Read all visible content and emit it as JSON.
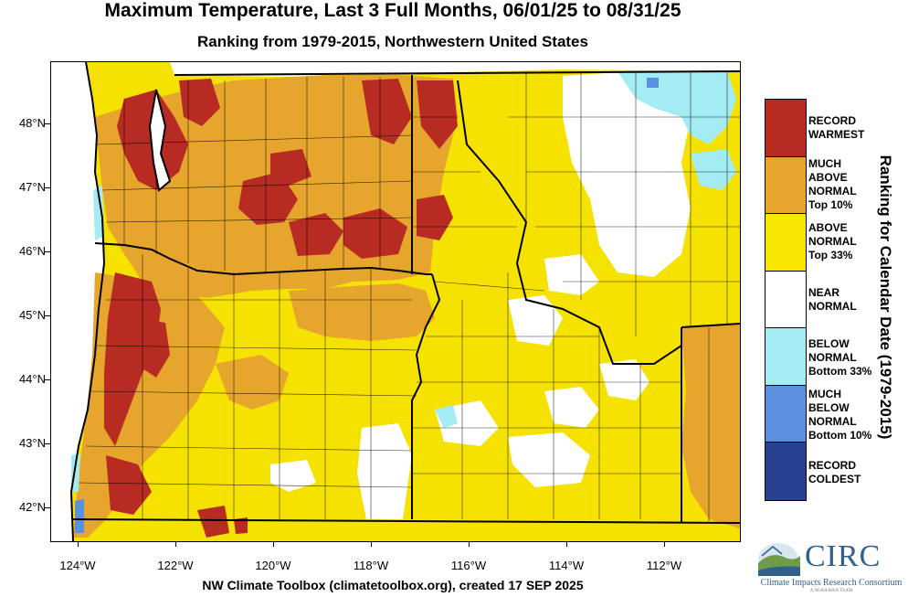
{
  "title": "Maximum Temperature, Last 3 Full Months, 06/01/25 to 08/31/25",
  "subtitle": "Ranking from 1979-2015, Northwestern United States",
  "credit": "NW Climate Toolbox (climatetoolbox.org), created 17 SEP 2025",
  "map": {
    "lat_labels": [
      "48°N",
      "47°N",
      "46°N",
      "45°N",
      "44°N",
      "43°N",
      "42°N"
    ],
    "lon_labels": [
      "124°W",
      "122°W",
      "120°W",
      "118°W",
      "116°W",
      "114°W",
      "112°W"
    ],
    "lon_range": [
      "124.5°W",
      "110.5°W"
    ],
    "lat_range": [
      "41.5°N",
      "49°N"
    ]
  },
  "legend": {
    "title": "Ranking for Calendar Date (1979-2015)",
    "categories": [
      {
        "label": "RECORD\nWARMEST",
        "color": "#b72b22"
      },
      {
        "label": "MUCH\nABOVE\nNORMAL\nTop 10%",
        "color": "#e6a52c"
      },
      {
        "label": "ABOVE\nNORMAL\nTop 33%",
        "color": "#f6e600"
      },
      {
        "label": "NEAR\nNORMAL",
        "color": "#ffffff"
      },
      {
        "label": "BELOW\nNORMAL\nBottom 33%",
        "color": "#a3ecf3"
      },
      {
        "label": "MUCH\nBELOW\nNORMAL\nBottom 10%",
        "color": "#5b8fe0"
      },
      {
        "label": "RECORD\nCOLDEST",
        "color": "#27408f"
      }
    ]
  },
  "logo": {
    "name": "CIRC",
    "subtitle": "Climate Impacts Research Consortium",
    "tagline": "A NOAA RISA TEAM"
  }
}
